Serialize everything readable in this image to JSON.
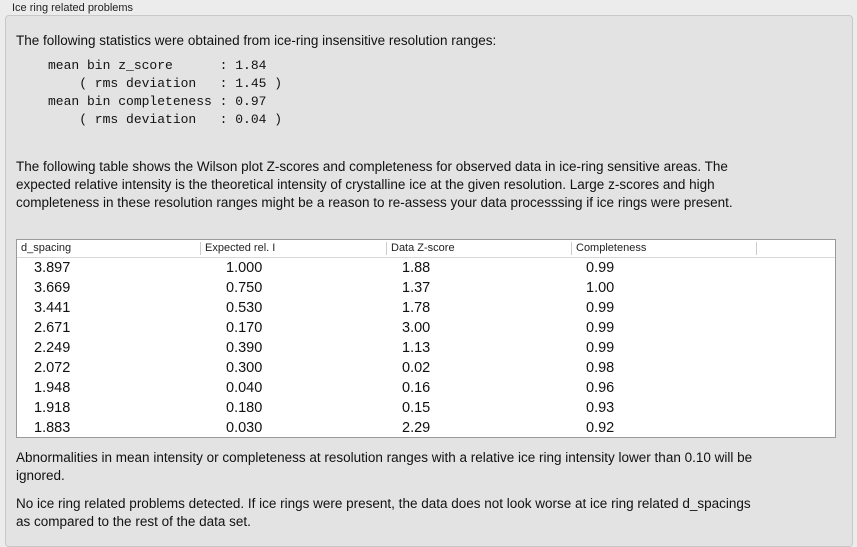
{
  "group_title": "Ice ring related problems",
  "intro": "The following statistics were obtained from ice-ring insensitive resolution ranges:",
  "stats": "mean bin z_score      : 1.84\n    ( rms deviation   : 1.45 )\nmean bin completeness : 0.97\n    ( rms deviation   : 0.04 )",
  "table_desc": "The following table shows the Wilson plot Z-scores and completeness for observed data in ice-ring sensitive areas. The expected relative intensity is the theoretical intensity of crystalline ice at the given resolution. Large z-scores and high completeness in these resolution ranges might be a reason to re-assess your data processsing if ice rings were present.",
  "table": {
    "headers": [
      "d_spacing",
      "Expected rel. I",
      "Data Z-score",
      "Completeness"
    ],
    "rows": [
      [
        "3.897",
        "1.000",
        "1.88",
        "0.99"
      ],
      [
        "3.669",
        "0.750",
        "1.37",
        "1.00"
      ],
      [
        "3.441",
        "0.530",
        "1.78",
        "0.99"
      ],
      [
        "2.671",
        "0.170",
        "3.00",
        "0.99"
      ],
      [
        "2.249",
        "0.390",
        "1.13",
        "0.99"
      ],
      [
        "2.072",
        "0.300",
        "0.02",
        "0.98"
      ],
      [
        "1.948",
        "0.040",
        "0.16",
        "0.96"
      ],
      [
        "1.918",
        "0.180",
        "0.15",
        "0.93"
      ],
      [
        "1.883",
        "0.030",
        "2.29",
        "0.92"
      ]
    ]
  },
  "note": "Abnormalities in mean intensity or completeness at resolution ranges with a relative ice ring intensity lower than 0.10 will be ignored.",
  "conclusion": "No ice ring related problems detected. If ice rings were present, the data does not look worse at ice ring related d_spacings as compared to the rest of the data set."
}
